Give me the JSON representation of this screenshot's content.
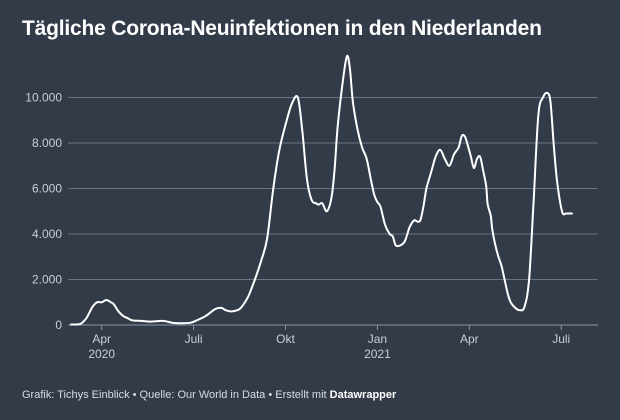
{
  "title": "Tägliche Corona-Neuinfektionen in den Niederlanden",
  "footer": {
    "credit": "Grafik: Tichys Einblick • Quelle: Our World in Data • Erstellt mit ",
    "tool": "Datawrapper"
  },
  "colors": {
    "background": "#333b49",
    "line": "#ffffff",
    "grid": "#6b7383",
    "axis_text": "#c9cdd5"
  },
  "chart_data": {
    "type": "line",
    "title": "Tägliche Corona-Neuinfektionen in den Niederlanden",
    "xlabel": "",
    "ylabel": "",
    "x_unit": "months since 2020-01-01",
    "xlim": [
      1.9,
      19.2
    ],
    "ylim": [
      0,
      12000
    ],
    "grid": true,
    "y_ticks": [
      {
        "value": 0,
        "label": "0"
      },
      {
        "value": 2000,
        "label": "2.000"
      },
      {
        "value": 4000,
        "label": "4.000"
      },
      {
        "value": 6000,
        "label": "6.000"
      },
      {
        "value": 8000,
        "label": "8.000"
      },
      {
        "value": 10000,
        "label": "10.000"
      }
    ],
    "x_ticks": [
      {
        "value": 3,
        "label": "Apr",
        "sublabel": "2020"
      },
      {
        "value": 6,
        "label": "Juli",
        "sublabel": ""
      },
      {
        "value": 9,
        "label": "Okt",
        "sublabel": ""
      },
      {
        "value": 12,
        "label": "Jan",
        "sublabel": "2021"
      },
      {
        "value": 15,
        "label": "Apr",
        "sublabel": ""
      },
      {
        "value": 18,
        "label": "Juli",
        "sublabel": ""
      }
    ],
    "series": [
      {
        "name": "Neuinfektionen",
        "x": [
          2.0,
          2.3,
          2.5,
          2.7,
          2.85,
          3.0,
          3.15,
          3.3,
          3.4,
          3.55,
          3.7,
          3.85,
          4.0,
          4.3,
          4.6,
          5.0,
          5.3,
          5.6,
          5.9,
          6.1,
          6.4,
          6.7,
          6.9,
          7.05,
          7.2,
          7.35,
          7.5,
          7.65,
          7.8,
          8.0,
          8.2,
          8.4,
          8.6,
          8.8,
          9.0,
          9.2,
          9.4,
          9.55,
          9.7,
          9.85,
          10.0,
          10.05,
          10.1,
          10.2,
          10.35,
          10.5,
          10.6,
          10.7,
          10.85,
          11.0,
          11.1,
          11.2,
          11.35,
          11.5,
          11.65,
          11.8,
          11.9,
          12.0,
          12.1,
          12.25,
          12.4,
          12.5,
          12.6,
          12.75,
          12.9,
          13.05,
          13.2,
          13.3,
          13.4,
          13.5,
          13.6,
          13.75,
          13.9,
          14.05,
          14.2,
          14.35,
          14.5,
          14.65,
          14.75,
          14.85,
          14.95,
          15.05,
          15.15,
          15.25,
          15.35,
          15.45,
          15.55,
          15.6,
          15.7,
          15.75,
          15.85,
          15.95,
          16.05,
          16.15,
          16.25,
          16.35,
          16.5,
          16.65,
          16.8,
          16.95,
          17.1,
          17.25,
          17.4,
          17.55,
          17.65,
          17.75,
          17.85,
          17.95,
          18.05,
          18.15,
          18.25,
          18.35
        ],
        "values": [
          20,
          50,
          300,
          800,
          1000,
          1000,
          1100,
          1000,
          900,
          600,
          400,
          300,
          200,
          180,
          150,
          180,
          100,
          80,
          100,
          200,
          400,
          700,
          750,
          650,
          600,
          620,
          700,
          950,
          1300,
          2000,
          2800,
          3800,
          6000,
          7700,
          8800,
          9700,
          10000,
          8500,
          6400,
          5500,
          5350,
          5300,
          5300,
          5350,
          5000,
          5600,
          6800,
          8700,
          10500,
          11800,
          11300,
          9800,
          8600,
          7800,
          7300,
          6300,
          5700,
          5400,
          5200,
          4400,
          4000,
          3900,
          3500,
          3500,
          3700,
          4300,
          4600,
          4550,
          4600,
          5200,
          6000,
          6700,
          7400,
          7700,
          7300,
          7000,
          7500,
          7800,
          8300,
          8300,
          7900,
          7400,
          6900,
          7300,
          7400,
          6800,
          6100,
          5300,
          4800,
          4200,
          3500,
          3000,
          2600,
          2000,
          1400,
          1000,
          750,
          650,
          800,
          2000,
          5500,
          9200,
          10000,
          10200,
          9800,
          8000,
          6500,
          5500,
          4900,
          4900,
          4900,
          4900
        ]
      }
    ]
  }
}
